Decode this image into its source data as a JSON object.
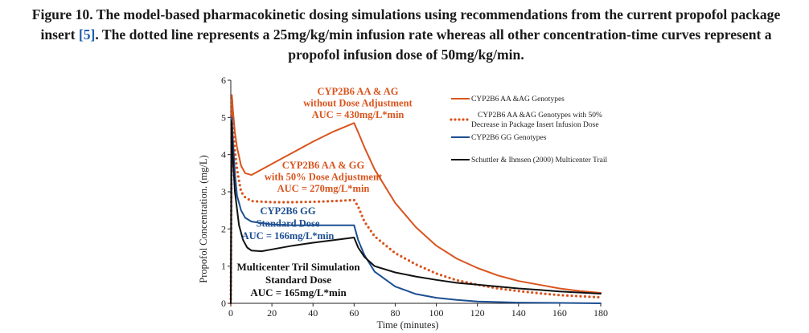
{
  "caption": {
    "part1": "Figure 10. The model-based pharmacokinetic dosing simulations using recommendations from the current propofol package insert ",
    "ref": "[5]",
    "part2": ". The dotted line represents a 25mg/kg/min infusion rate whereas all other concentration-time curves represent a propofol infusion dose of 50mg/kg/min."
  },
  "chart_data": {
    "type": "line",
    "title": "",
    "xlabel": "Time (minutes)",
    "ylabel": "Propofol Concentration. (mg/L)",
    "xlim": [
      0,
      180
    ],
    "ylim": [
      0,
      6
    ],
    "xticks": [
      0,
      20,
      40,
      60,
      80,
      100,
      120,
      140,
      160,
      180
    ],
    "yticks": [
      0,
      1,
      2,
      3,
      4,
      5,
      6
    ],
    "grid": false,
    "legend_position": "top-right",
    "series": [
      {
        "name": "CYP2B6 AA &AG Genotypes",
        "color": "#d9541e",
        "style": "solid",
        "points": [
          [
            0,
            0
          ],
          [
            0.5,
            5.6
          ],
          [
            1,
            5.2
          ],
          [
            2,
            4.6
          ],
          [
            3,
            4.2
          ],
          [
            5,
            3.7
          ],
          [
            7,
            3.5
          ],
          [
            10,
            3.45
          ],
          [
            15,
            3.6
          ],
          [
            20,
            3.75
          ],
          [
            30,
            4.05
          ],
          [
            40,
            4.35
          ],
          [
            50,
            4.62
          ],
          [
            60,
            4.85
          ],
          [
            62,
            4.6
          ],
          [
            65,
            4.2
          ],
          [
            70,
            3.6
          ],
          [
            80,
            2.7
          ],
          [
            90,
            2.05
          ],
          [
            100,
            1.55
          ],
          [
            110,
            1.2
          ],
          [
            120,
            0.95
          ],
          [
            130,
            0.75
          ],
          [
            140,
            0.6
          ],
          [
            150,
            0.5
          ],
          [
            160,
            0.4
          ],
          [
            170,
            0.33
          ],
          [
            180,
            0.28
          ]
        ]
      },
      {
        "name": "CYP2B6 AA &AG Genotypes with 50% Decrease in Package Insert Infusion Dose",
        "color": "#d9541e",
        "style": "dotted",
        "points": [
          [
            0,
            0
          ],
          [
            0.5,
            5.5
          ],
          [
            1,
            4.9
          ],
          [
            2,
            4.1
          ],
          [
            3,
            3.6
          ],
          [
            5,
            3.0
          ],
          [
            7,
            2.85
          ],
          [
            10,
            2.75
          ],
          [
            20,
            2.72
          ],
          [
            30,
            2.72
          ],
          [
            40,
            2.73
          ],
          [
            50,
            2.75
          ],
          [
            60,
            2.78
          ],
          [
            62,
            2.6
          ],
          [
            65,
            2.2
          ],
          [
            70,
            1.8
          ],
          [
            80,
            1.35
          ],
          [
            90,
            1.05
          ],
          [
            100,
            0.8
          ],
          [
            110,
            0.62
          ],
          [
            120,
            0.5
          ],
          [
            130,
            0.4
          ],
          [
            140,
            0.33
          ],
          [
            150,
            0.27
          ],
          [
            160,
            0.22
          ],
          [
            170,
            0.19
          ],
          [
            180,
            0.16
          ]
        ]
      },
      {
        "name": "CYP2B6 GG Genotypes",
        "color": "#1d4f91",
        "style": "solid",
        "points": [
          [
            0,
            0
          ],
          [
            0.5,
            5.0
          ],
          [
            1,
            4.4
          ],
          [
            2,
            3.5
          ],
          [
            3,
            2.9
          ],
          [
            5,
            2.5
          ],
          [
            7,
            2.3
          ],
          [
            10,
            2.2
          ],
          [
            20,
            2.12
          ],
          [
            30,
            2.1
          ],
          [
            40,
            2.1
          ],
          [
            50,
            2.1
          ],
          [
            60,
            2.1
          ],
          [
            62,
            1.7
          ],
          [
            65,
            1.3
          ],
          [
            70,
            0.85
          ],
          [
            80,
            0.45
          ],
          [
            90,
            0.25
          ],
          [
            100,
            0.15
          ],
          [
            110,
            0.09
          ],
          [
            120,
            0.05
          ],
          [
            140,
            0.02
          ],
          [
            160,
            0.01
          ],
          [
            180,
            0.0
          ]
        ]
      },
      {
        "name": "Schuttler & Ihmsen (2000) Multicenter Trail",
        "color": "#111111",
        "style": "solid",
        "points": [
          [
            0,
            0
          ],
          [
            0.3,
            4.9
          ],
          [
            1,
            3.9
          ],
          [
            2,
            3.0
          ],
          [
            4,
            2.1
          ],
          [
            6,
            1.7
          ],
          [
            8,
            1.5
          ],
          [
            10,
            1.42
          ],
          [
            15,
            1.4
          ],
          [
            20,
            1.45
          ],
          [
            30,
            1.55
          ],
          [
            40,
            1.63
          ],
          [
            50,
            1.7
          ],
          [
            60,
            1.77
          ],
          [
            62,
            1.5
          ],
          [
            65,
            1.25
          ],
          [
            70,
            1.0
          ],
          [
            80,
            0.83
          ],
          [
            90,
            0.72
          ],
          [
            100,
            0.63
          ],
          [
            110,
            0.55
          ],
          [
            120,
            0.5
          ],
          [
            130,
            0.45
          ],
          [
            140,
            0.4
          ],
          [
            150,
            0.36
          ],
          [
            160,
            0.32
          ],
          [
            170,
            0.29
          ],
          [
            180,
            0.26
          ]
        ]
      }
    ],
    "annotations": [
      {
        "lines": [
          "CYP2B6 AA & AG",
          "without Dose Adjustment",
          "AUC = 430mg/L*min"
        ],
        "color": "#d9541e"
      },
      {
        "lines": [
          "CYP2B6 AA & GG",
          "with 50% Dose Adjustment",
          "AUC = 270mg/L*min"
        ],
        "color": "#d9541e"
      },
      {
        "lines": [
          "CYP2B6 GG",
          "Standard Dose",
          "AUC = 166mg/L*min"
        ],
        "color": "#1d4f91"
      },
      {
        "lines": [
          "Multicenter Tril Simulation",
          "Standard Dose",
          "AUC = 165mg/L*min"
        ],
        "color": "#111111"
      }
    ]
  }
}
